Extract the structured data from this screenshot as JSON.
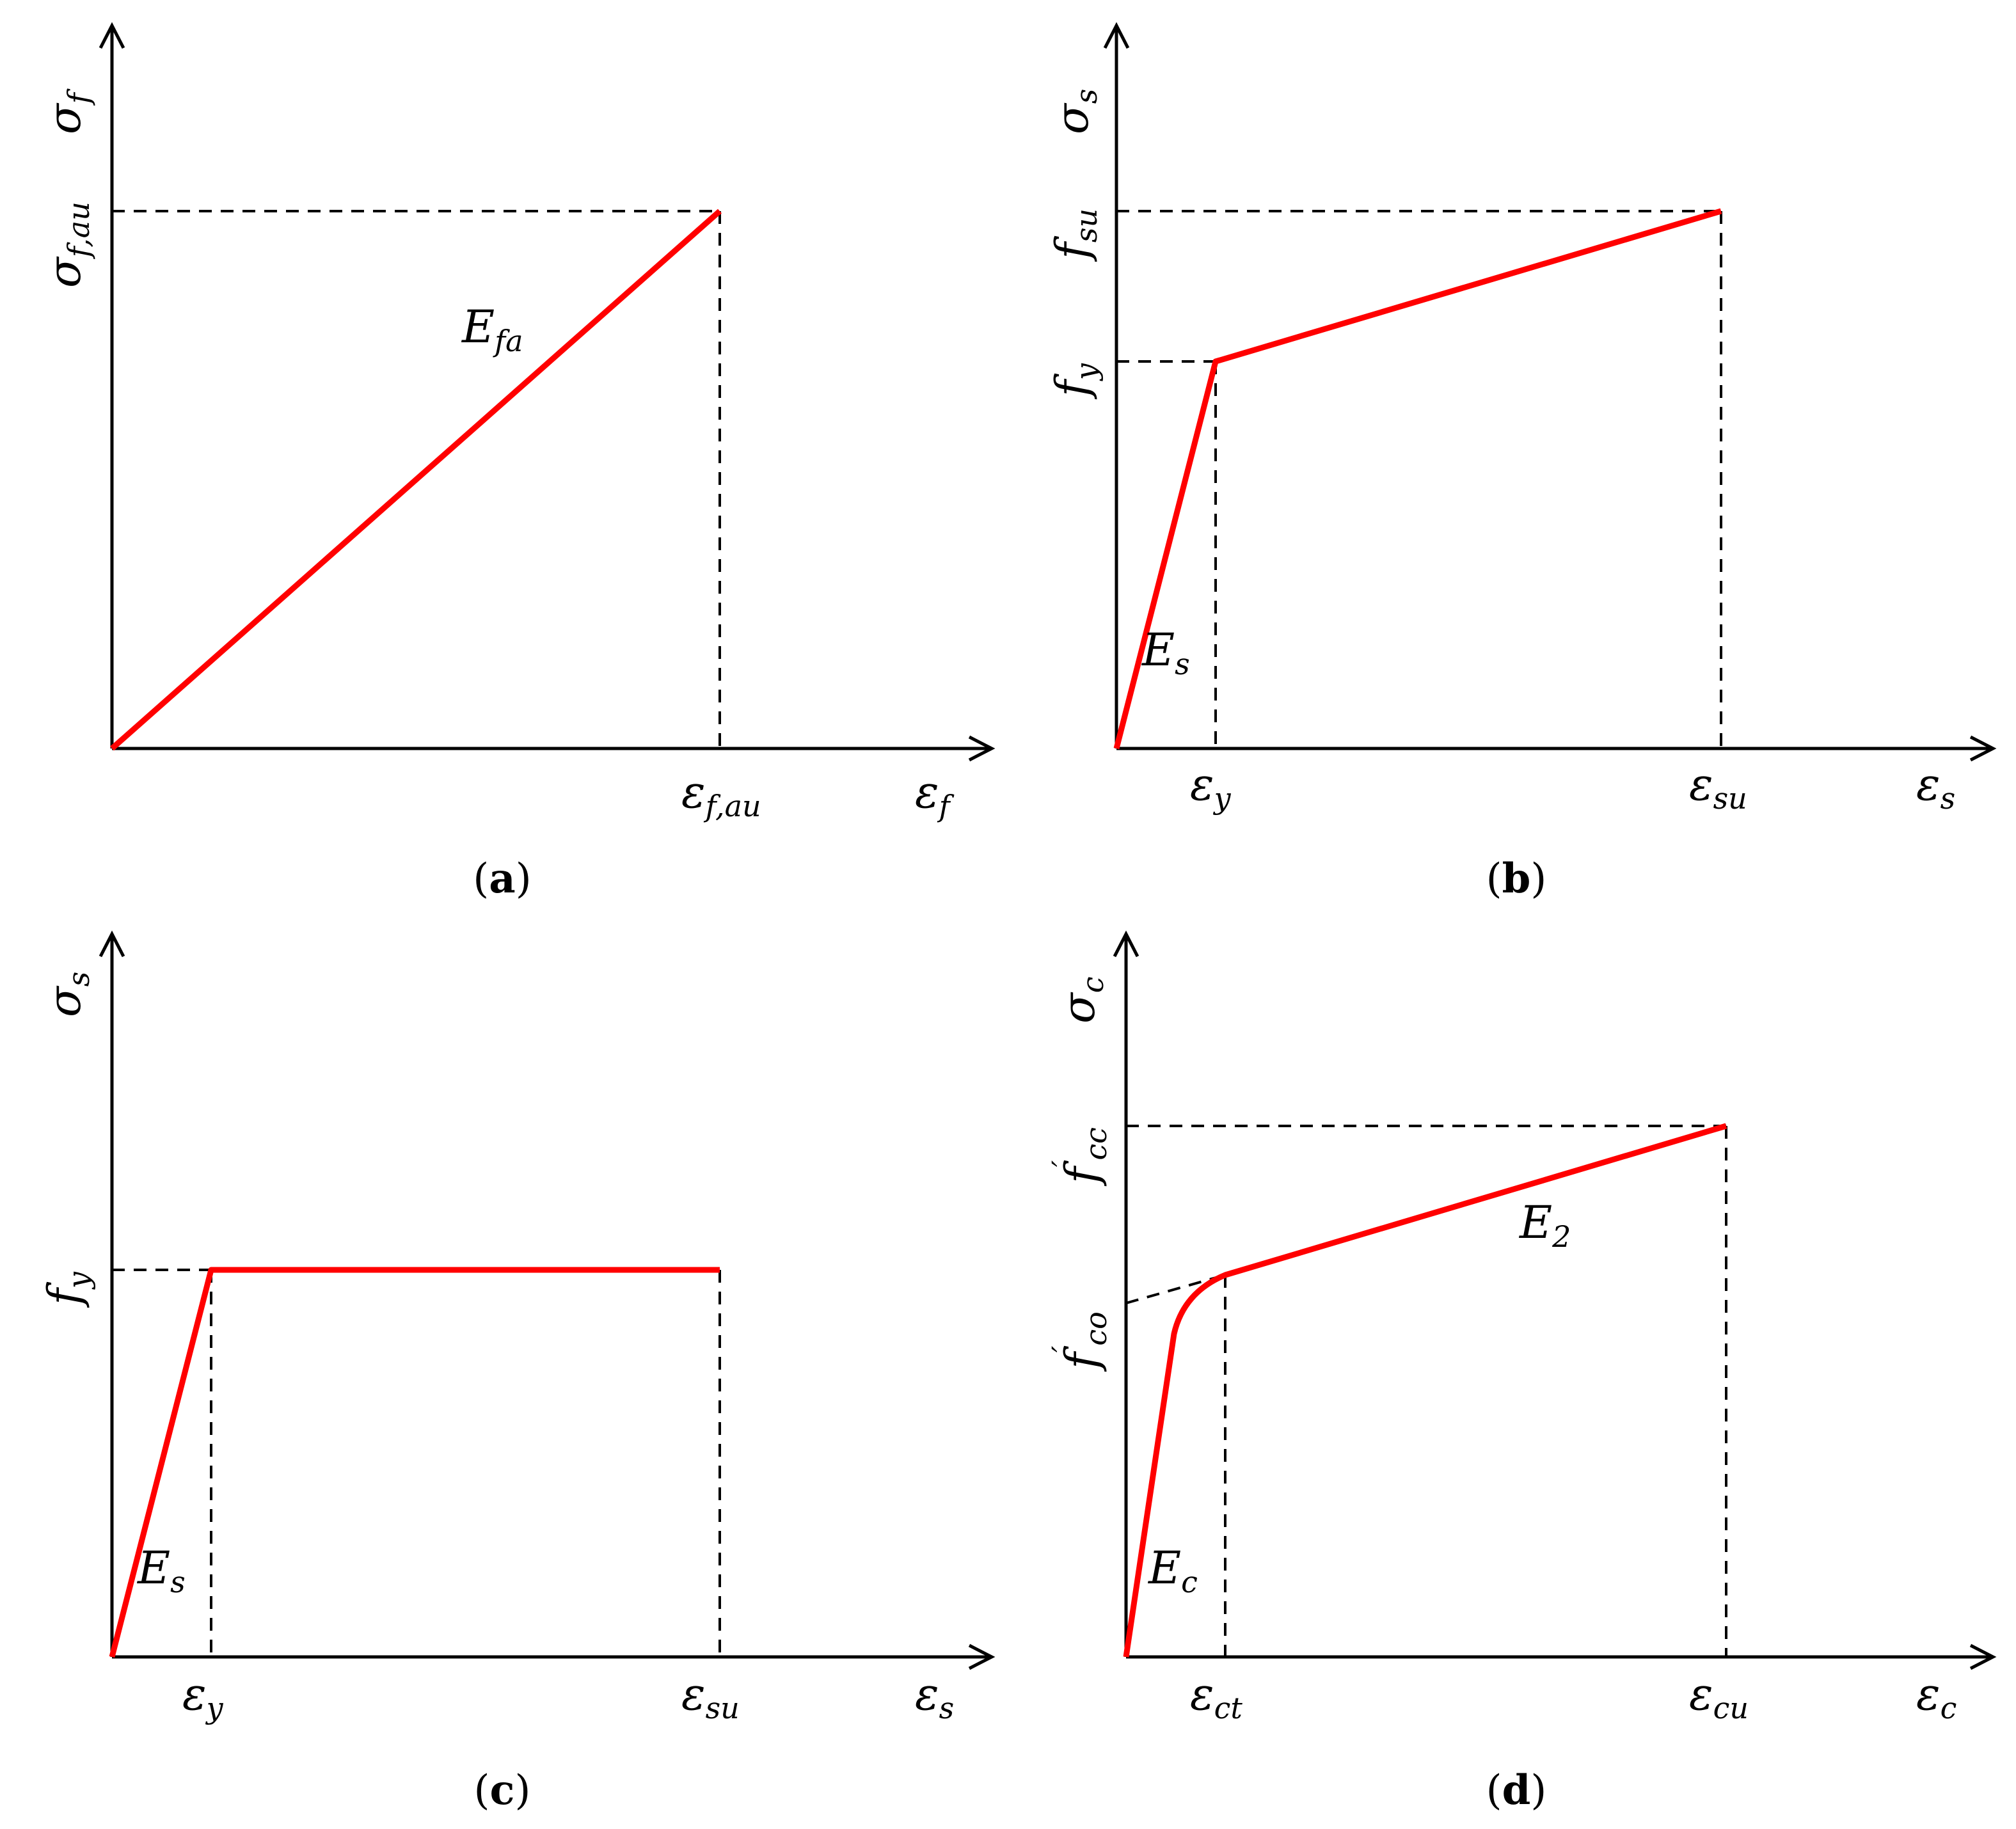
{
  "panels": {
    "a": {
      "caption_label": "a",
      "y_axis": "σ",
      "y_axis_sub": "f",
      "x_axis": "ε",
      "x_axis_sub": "f",
      "y_tick": "σ",
      "y_tick_sub": "f,au",
      "x_tick": "ε",
      "x_tick_sub": "f,au",
      "slope": "E",
      "slope_sub": "fa"
    },
    "b": {
      "caption_label": "b",
      "y_axis": "σ",
      "y_axis_sub": "s",
      "x_axis": "ε",
      "x_axis_sub": "s",
      "y_tick_1": "f",
      "y_tick_1_sub": "su",
      "y_tick_2": "f",
      "y_tick_2_sub": "y",
      "x_tick_1": "ε",
      "x_tick_1_sub": "y",
      "x_tick_2": "ε",
      "x_tick_2_sub": "su",
      "slope": "E",
      "slope_sub": "s"
    },
    "c": {
      "caption_label": "c",
      "y_axis": "σ",
      "y_axis_sub": "s",
      "x_axis": "ε",
      "x_axis_sub": "s",
      "y_tick": "f",
      "y_tick_sub": "y",
      "x_tick_1": "ε",
      "x_tick_1_sub": "y",
      "x_tick_2": "ε",
      "x_tick_2_sub": "su",
      "slope": "E",
      "slope_sub": "s"
    },
    "d": {
      "caption_label": "d",
      "y_axis": "σ",
      "y_axis_sub": "c",
      "x_axis": "ε",
      "x_axis_sub": "c",
      "y_tick_1": "f",
      "y_tick_1_sub": "cc",
      "y_tick_1_prime": "′",
      "y_tick_2": "f",
      "y_tick_2_sub": "co",
      "y_tick_2_prime": "′",
      "x_tick_1": "ε",
      "x_tick_1_sub": "ct",
      "x_tick_2": "ε",
      "x_tick_2_sub": "cu",
      "slope_1": "E",
      "slope_1_sub": "c",
      "slope_2": "E",
      "slope_2_sub": "2"
    }
  },
  "colors": {
    "curve": "#ff0000",
    "axes": "#000000"
  }
}
